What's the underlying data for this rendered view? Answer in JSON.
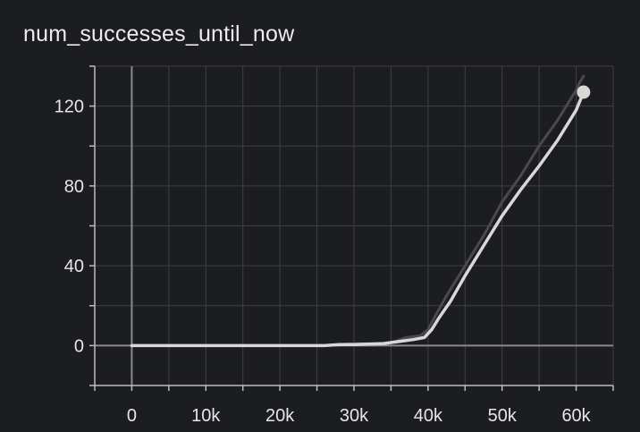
{
  "chart_data": {
    "type": "line",
    "title": "num_successes_until_now",
    "xlabel": "",
    "ylabel": "",
    "xlim": [
      -5000,
      65000
    ],
    "ylim": [
      -20,
      140
    ],
    "xticks": [
      0,
      10000,
      20000,
      30000,
      40000,
      50000,
      60000
    ],
    "xtick_labels": [
      "0",
      "10k",
      "20k",
      "30k",
      "40k",
      "50k",
      "60k"
    ],
    "yticks": [
      0,
      40,
      80,
      120
    ],
    "ytick_labels": [
      "0",
      "40",
      "80",
      "120"
    ],
    "grid": true,
    "series": [
      {
        "role": "raw",
        "color": "#4a4a4d",
        "points": [
          [
            0,
            0
          ],
          [
            10000,
            0
          ],
          [
            20000,
            0
          ],
          [
            26000,
            0
          ],
          [
            30000,
            1
          ],
          [
            34000,
            1
          ],
          [
            35500,
            2
          ],
          [
            37000,
            4
          ],
          [
            39000,
            5
          ],
          [
            40000,
            8
          ],
          [
            41000,
            15
          ],
          [
            42500,
            25
          ],
          [
            45000,
            40
          ],
          [
            47500,
            55
          ],
          [
            50000,
            72
          ],
          [
            52500,
            85
          ],
          [
            55000,
            100
          ],
          [
            57500,
            113
          ],
          [
            60000,
            128
          ],
          [
            60500,
            132
          ],
          [
            61000,
            135
          ]
        ]
      },
      {
        "role": "smoothed",
        "color": "#d8d8d6",
        "points": [
          [
            0,
            0
          ],
          [
            10000,
            0
          ],
          [
            20000,
            0
          ],
          [
            26000,
            0
          ],
          [
            28000,
            0.5
          ],
          [
            30000,
            0.5
          ],
          [
            34000,
            1
          ],
          [
            36000,
            2
          ],
          [
            38000,
            3
          ],
          [
            39500,
            4
          ],
          [
            40500,
            8
          ],
          [
            41500,
            14
          ],
          [
            43000,
            22
          ],
          [
            45000,
            35
          ],
          [
            47500,
            50
          ],
          [
            50000,
            65
          ],
          [
            52500,
            78
          ],
          [
            55000,
            90
          ],
          [
            57500,
            103
          ],
          [
            60000,
            118
          ],
          [
            61000,
            127
          ]
        ]
      }
    ],
    "last_point": [
      61000,
      127
    ]
  }
}
